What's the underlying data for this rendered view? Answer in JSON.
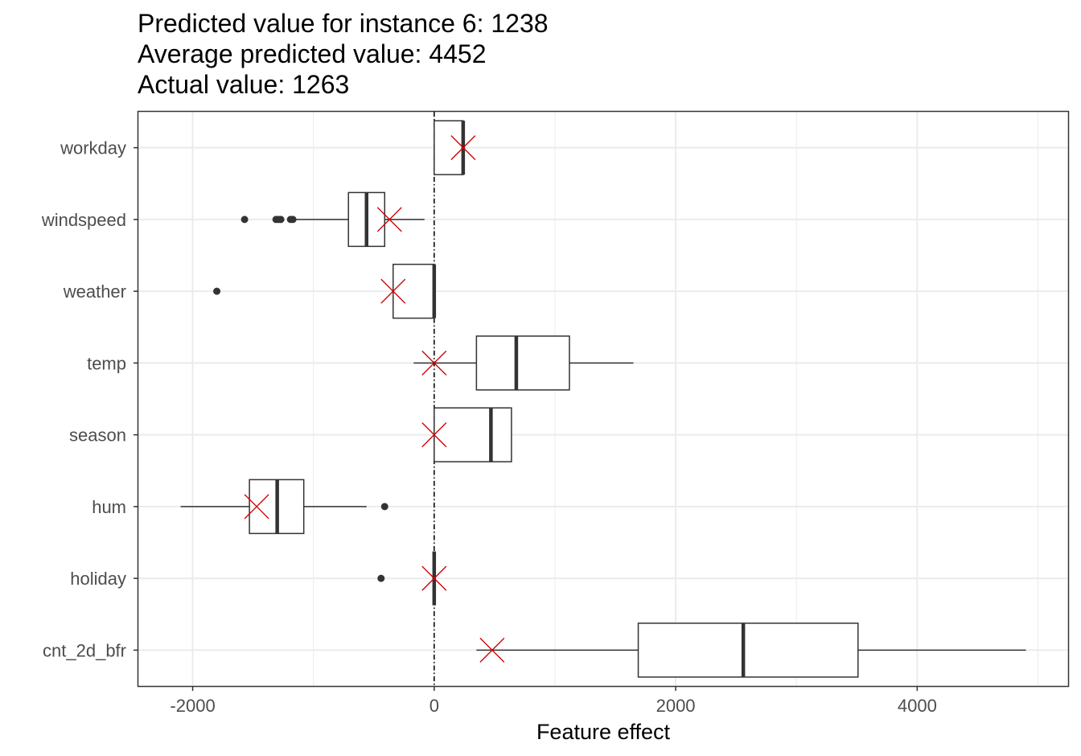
{
  "chart_data": {
    "type": "boxplot",
    "title_lines": [
      "Predicted value for instance 6: 1238",
      "Average predicted value: 4452",
      "Actual value: 1263"
    ],
    "xlabel": "Feature effect",
    "ylabel": "",
    "xlim": [
      -2450,
      5250
    ],
    "x_ticks": [
      -2000,
      0,
      2000,
      4000
    ],
    "x_tick_labels": [
      "-2000",
      "0",
      "2000",
      "4000"
    ],
    "grid": true,
    "reference_line": {
      "x": 0,
      "style": "dotdash"
    },
    "colors": {
      "box": "#333333",
      "grid": "#ebebeb",
      "marker": "#cc0000",
      "panel_border": "#333333"
    },
    "features": [
      {
        "name": "workday",
        "min": 0,
        "q1": 0,
        "median": 240,
        "q3": 240,
        "max": 240,
        "outliers": [],
        "instance": 240
      },
      {
        "name": "windspeed",
        "min": -1150,
        "q1": -710,
        "median": -560,
        "q3": -410,
        "max": -80,
        "outliers": [
          -1570,
          -1310,
          -1290,
          -1270,
          -1190,
          -1170
        ],
        "instance": -370
      },
      {
        "name": "weather",
        "min": -340,
        "q1": -340,
        "median": 0,
        "q3": 0,
        "max": 0,
        "outliers": [
          -1800
        ],
        "instance": -340
      },
      {
        "name": "temp",
        "min": -170,
        "q1": 350,
        "median": 680,
        "q3": 1120,
        "max": 1650,
        "outliers": [],
        "instance": 0
      },
      {
        "name": "season",
        "min": 0,
        "q1": 0,
        "median": 470,
        "q3": 640,
        "max": 640,
        "outliers": [],
        "instance": 0
      },
      {
        "name": "hum",
        "min": -2100,
        "q1": -1530,
        "median": -1300,
        "q3": -1080,
        "max": -560,
        "outliers": [
          -410
        ],
        "instance": -1470
      },
      {
        "name": "holiday",
        "min": 0,
        "q1": 0,
        "median": 0,
        "q3": 0,
        "max": 0,
        "outliers": [
          -440
        ],
        "instance": 0
      },
      {
        "name": "cnt_2d_bfr",
        "min": 350,
        "q1": 1690,
        "median": 2560,
        "q3": 3510,
        "max": 4900,
        "outliers": [],
        "instance": 480
      }
    ]
  }
}
